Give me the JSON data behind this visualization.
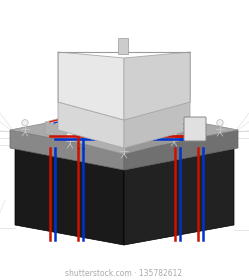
{
  "bg_color": "#ffffff",
  "pipe_red": "#cc1100",
  "pipe_blue": "#0033cc",
  "floor_red": "#dd2200",
  "floor_blue": "#1133cc",
  "watermark_color": "#aaaaaa",
  "watermark_text": "shutterstock.com · 135782612",
  "watermark_fontsize": 5.5,
  "ground_left_fc": "#1a1a1a",
  "ground_right_fc": "#222222",
  "ground_top_fc": "#333333",
  "slab_left_fc": "#888888",
  "slab_right_fc": "#707070",
  "slab_top_fc": "#aaaaaa",
  "inner_slab_fc": "#c8c8c8",
  "inner_slab_left_fc": "#b0b0b0",
  "inner_slab_right_fc": "#989898",
  "house_left_fc": "#d8d8d8",
  "house_right_fc": "#c0c0c0",
  "house_top_fc": "#e0e0e0",
  "roof_left_fc": "#e8e8e8",
  "roof_right_fc": "#d0d0d0",
  "sketch_color": "#bbbbbb",
  "person_color": "#cccccc",
  "hp_box_fc": "#e0e0e0"
}
